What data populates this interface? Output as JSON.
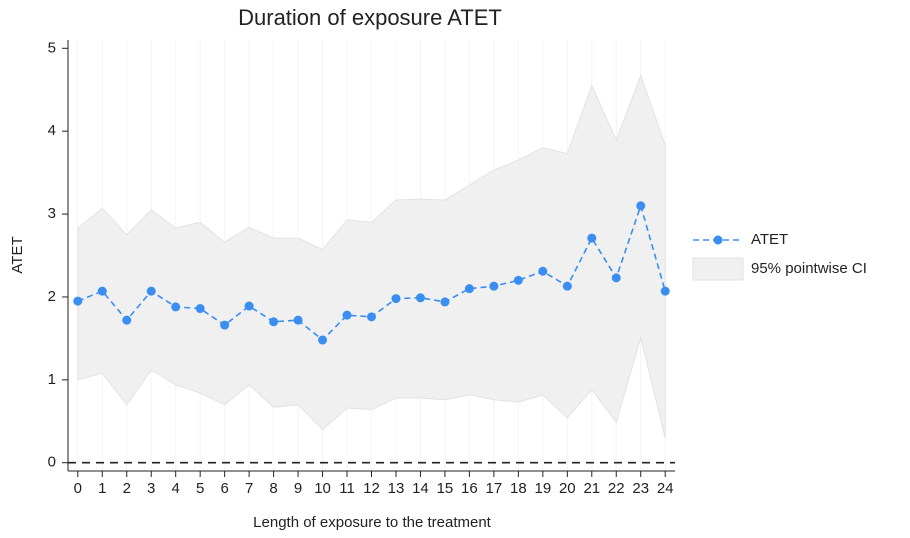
{
  "chart_data": {
    "type": "line",
    "title": "Duration of exposure ATET",
    "x_label": "Length of exposure to the treatment",
    "y_label": "ATET",
    "x": [
      0,
      1,
      2,
      3,
      4,
      5,
      6,
      7,
      8,
      9,
      10,
      11,
      12,
      13,
      14,
      15,
      16,
      17,
      18,
      19,
      20,
      21,
      22,
      23,
      24
    ],
    "series": [
      {
        "name": "ATET",
        "color": "#3a8ef0",
        "values": [
          1.95,
          2.07,
          1.72,
          2.07,
          1.88,
          1.86,
          1.66,
          1.89,
          1.7,
          1.72,
          1.48,
          1.78,
          1.76,
          1.98,
          1.99,
          1.94,
          2.1,
          2.13,
          2.2,
          2.31,
          2.13,
          2.71,
          2.23,
          3.1,
          2.07
        ]
      },
      {
        "name": "95% pointwise CI",
        "color": "#f0f0f0",
        "lower": [
          1.0,
          1.08,
          0.7,
          1.12,
          0.94,
          0.84,
          0.7,
          0.94,
          0.67,
          0.7,
          0.4,
          0.66,
          0.64,
          0.78,
          0.78,
          0.76,
          0.82,
          0.76,
          0.73,
          0.82,
          0.54,
          0.88,
          0.49,
          1.51,
          0.3
        ],
        "upper": [
          2.83,
          3.07,
          2.75,
          3.05,
          2.83,
          2.9,
          2.66,
          2.84,
          2.71,
          2.71,
          2.57,
          2.93,
          2.9,
          3.17,
          3.18,
          3.17,
          3.35,
          3.53,
          3.65,
          3.8,
          3.73,
          4.55,
          3.89,
          4.67,
          3.83
        ]
      }
    ],
    "reference_line": 0,
    "xlim": [
      -0.4,
      24.4
    ],
    "ylim": [
      -0.1,
      5.1
    ],
    "xticks": [
      0,
      1,
      2,
      3,
      4,
      5,
      6,
      7,
      8,
      9,
      10,
      11,
      12,
      13,
      14,
      15,
      16,
      17,
      18,
      19,
      20,
      21,
      22,
      23,
      24
    ],
    "yticks": [
      0,
      1,
      2,
      3,
      4,
      5
    ],
    "grid": true,
    "legend": "right"
  }
}
